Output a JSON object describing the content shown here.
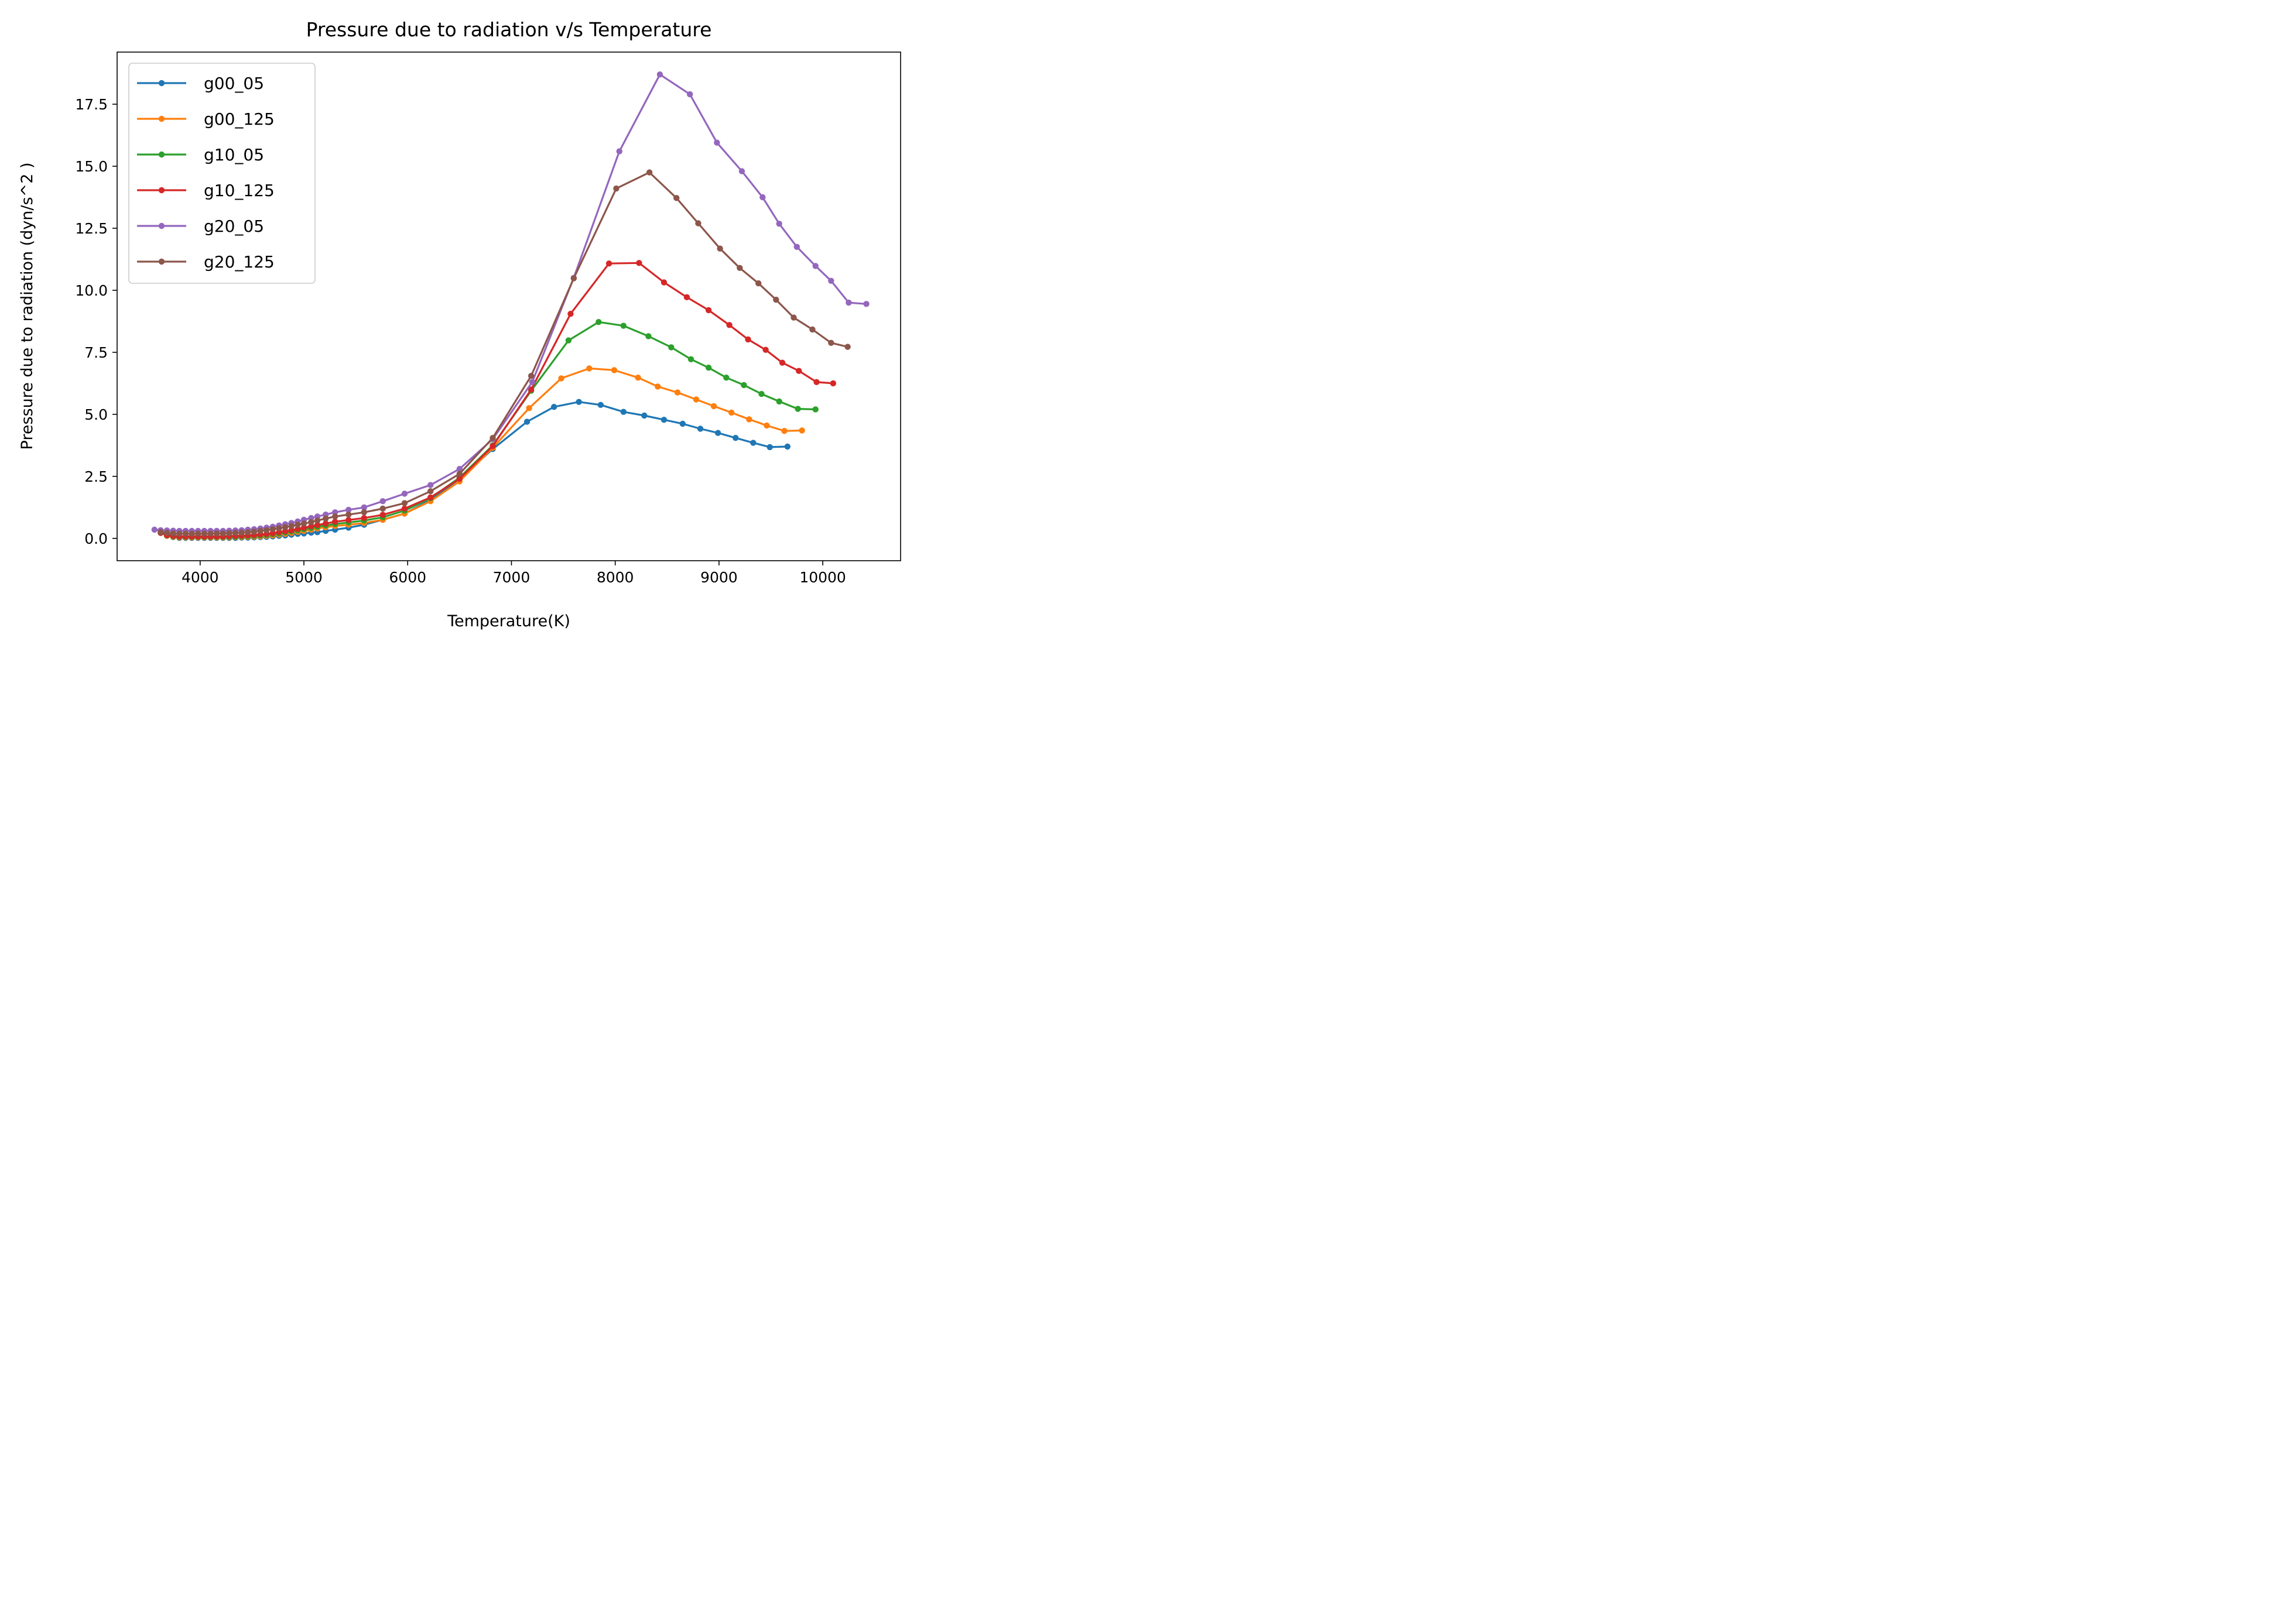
{
  "chart_data": {
    "type": "line",
    "title": "Pressure due to radiation v/s Temperature",
    "xlabel": "Temperature(K)",
    "ylabel": "Pressure due to radiation (dyn/s^2 )",
    "xlim": [
      3200,
      10750
    ],
    "ylim": [
      -0.9,
      19.6
    ],
    "xticks": [
      4000,
      5000,
      6000,
      7000,
      8000,
      9000,
      10000
    ],
    "yticks": [
      0.0,
      2.5,
      5.0,
      7.5,
      10.0,
      12.5,
      15.0,
      17.5
    ],
    "ytick_labels": [
      "0.0",
      "2.5",
      "5.0",
      "7.5",
      "10.0",
      "12.5",
      "15.0",
      "17.5"
    ],
    "grid": false,
    "legend_position": "top-left",
    "series": [
      {
        "name": "g00_05",
        "color": "#1f77b4",
        "x": [
          3620,
          3680,
          3740,
          3800,
          3860,
          3920,
          3980,
          4040,
          4100,
          4160,
          4220,
          4280,
          4340,
          4400,
          4460,
          4520,
          4580,
          4640,
          4700,
          4760,
          4820,
          4880,
          4940,
          5000,
          5070,
          5130,
          5210,
          5300,
          5430,
          5580,
          5760,
          5970,
          6220,
          6500,
          6820,
          7150,
          7410,
          7650,
          7860,
          8080,
          8280,
          8470,
          8650,
          8820,
          8990,
          9160,
          9330,
          9490,
          9660
        ],
        "y": [
          0.25,
          0.1,
          0.05,
          0.02,
          0.02,
          0.02,
          0.02,
          0.02,
          0.02,
          0.02,
          0.02,
          0.02,
          0.02,
          0.03,
          0.03,
          0.04,
          0.05,
          0.06,
          0.08,
          0.1,
          0.12,
          0.15,
          0.18,
          0.2,
          0.23,
          0.25,
          0.3,
          0.35,
          0.43,
          0.55,
          0.75,
          1.0,
          1.55,
          2.4,
          3.6,
          4.7,
          5.3,
          5.5,
          5.38,
          5.1,
          4.95,
          4.78,
          4.62,
          4.42,
          4.25,
          4.05,
          3.85,
          3.68,
          3.7
        ]
      },
      {
        "name": "g00_125",
        "color": "#ff7f0e",
        "x": [
          3620,
          3680,
          3740,
          3800,
          3860,
          3920,
          3980,
          4040,
          4100,
          4160,
          4220,
          4280,
          4340,
          4400,
          4460,
          4520,
          4580,
          4640,
          4700,
          4760,
          4820,
          4880,
          4940,
          5000,
          5070,
          5130,
          5210,
          5300,
          5430,
          5580,
          5760,
          5970,
          6220,
          6500,
          6820,
          7170,
          7480,
          7750,
          7990,
          8220,
          8410,
          8600,
          8780,
          8950,
          9120,
          9290,
          9460,
          9630,
          9800
        ],
        "y": [
          0.25,
          0.1,
          0.06,
          0.04,
          0.04,
          0.04,
          0.04,
          0.04,
          0.04,
          0.04,
          0.04,
          0.04,
          0.05,
          0.05,
          0.06,
          0.07,
          0.08,
          0.1,
          0.12,
          0.15,
          0.18,
          0.22,
          0.26,
          0.3,
          0.35,
          0.4,
          0.45,
          0.5,
          0.55,
          0.62,
          0.75,
          1.0,
          1.5,
          2.3,
          3.65,
          5.25,
          6.45,
          6.85,
          6.78,
          6.48,
          6.12,
          5.88,
          5.6,
          5.33,
          5.07,
          4.8,
          4.55,
          4.33,
          4.35
        ]
      },
      {
        "name": "g10_05",
        "color": "#2ca02c",
        "x": [
          3620,
          3680,
          3740,
          3800,
          3860,
          3920,
          3980,
          4040,
          4100,
          4160,
          4220,
          4280,
          4340,
          4400,
          4460,
          4520,
          4580,
          4640,
          4700,
          4760,
          4820,
          4880,
          4940,
          5000,
          5070,
          5130,
          5210,
          5300,
          5430,
          5580,
          5760,
          5970,
          6220,
          6500,
          6820,
          7190,
          7550,
          7840,
          8080,
          8320,
          8540,
          8730,
          8900,
          9070,
          9240,
          9410,
          9580,
          9760,
          9930
        ],
        "y": [
          0.22,
          0.12,
          0.08,
          0.06,
          0.06,
          0.06,
          0.06,
          0.06,
          0.06,
          0.06,
          0.06,
          0.06,
          0.07,
          0.08,
          0.09,
          0.1,
          0.12,
          0.14,
          0.17,
          0.2,
          0.24,
          0.28,
          0.32,
          0.37,
          0.42,
          0.47,
          0.52,
          0.58,
          0.64,
          0.72,
          0.85,
          1.12,
          1.62,
          2.45,
          3.75,
          5.95,
          7.98,
          8.72,
          8.57,
          8.15,
          7.7,
          7.22,
          6.88,
          6.48,
          6.18,
          5.82,
          5.52,
          5.22,
          5.2
        ]
      },
      {
        "name": "g10_125",
        "color": "#d62728",
        "x": [
          3620,
          3680,
          3740,
          3800,
          3860,
          3920,
          3980,
          4040,
          4100,
          4160,
          4220,
          4280,
          4340,
          4400,
          4460,
          4520,
          4580,
          4640,
          4700,
          4760,
          4820,
          4880,
          4940,
          5000,
          5070,
          5130,
          5210,
          5300,
          5430,
          5580,
          5760,
          5970,
          6220,
          6500,
          6820,
          7190,
          7570,
          7940,
          8230,
          8470,
          8690,
          8900,
          9100,
          9280,
          9450,
          9610,
          9770,
          9940,
          10100
        ],
        "y": [
          0.22,
          0.13,
          0.1,
          0.08,
          0.08,
          0.08,
          0.08,
          0.08,
          0.08,
          0.08,
          0.08,
          0.09,
          0.1,
          0.11,
          0.12,
          0.14,
          0.16,
          0.18,
          0.21,
          0.25,
          0.29,
          0.33,
          0.38,
          0.43,
          0.49,
          0.54,
          0.6,
          0.67,
          0.74,
          0.82,
          0.95,
          1.2,
          1.65,
          2.4,
          3.72,
          6.0,
          9.05,
          11.08,
          11.1,
          10.32,
          9.72,
          9.2,
          8.6,
          8.02,
          7.6,
          7.08,
          6.75,
          6.3,
          6.25
        ]
      },
      {
        "name": "g20_05",
        "color": "#9467bd",
        "x": [
          3560,
          3620,
          3680,
          3740,
          3800,
          3860,
          3920,
          3980,
          4040,
          4100,
          4160,
          4220,
          4280,
          4340,
          4400,
          4460,
          4520,
          4580,
          4640,
          4700,
          4760,
          4820,
          4880,
          4940,
          5000,
          5070,
          5130,
          5210,
          5300,
          5430,
          5580,
          5760,
          5970,
          6220,
          6500,
          6820,
          7200,
          7600,
          8040,
          8430,
          8720,
          8980,
          9220,
          9420,
          9580,
          9750,
          9930,
          10080,
          10250,
          10420
        ],
        "y": [
          0.35,
          0.33,
          0.32,
          0.31,
          0.3,
          0.3,
          0.3,
          0.3,
          0.3,
          0.3,
          0.3,
          0.3,
          0.31,
          0.32,
          0.33,
          0.35,
          0.37,
          0.4,
          0.43,
          0.47,
          0.52,
          0.57,
          0.62,
          0.68,
          0.75,
          0.82,
          0.88,
          0.96,
          1.05,
          1.15,
          1.25,
          1.5,
          1.8,
          2.15,
          2.8,
          4.0,
          6.3,
          10.5,
          15.6,
          18.7,
          17.9,
          15.95,
          14.8,
          13.75,
          12.68,
          11.75,
          10.98,
          10.38,
          9.5,
          9.45
        ]
      },
      {
        "name": "g20_125",
        "color": "#8c564b",
        "x": [
          3620,
          3680,
          3740,
          3800,
          3860,
          3920,
          3980,
          4040,
          4100,
          4160,
          4220,
          4280,
          4340,
          4400,
          4460,
          4520,
          4580,
          4640,
          4700,
          4760,
          4820,
          4880,
          4940,
          5000,
          5070,
          5130,
          5210,
          5300,
          5430,
          5580,
          5760,
          5970,
          6220,
          6500,
          6820,
          7190,
          7600,
          8010,
          8330,
          8590,
          8800,
          9010,
          9200,
          9380,
          9550,
          9720,
          9900,
          10080,
          10240
        ],
        "y": [
          0.25,
          0.22,
          0.2,
          0.19,
          0.19,
          0.19,
          0.19,
          0.19,
          0.19,
          0.2,
          0.2,
          0.21,
          0.22,
          0.23,
          0.25,
          0.27,
          0.3,
          0.33,
          0.37,
          0.41,
          0.45,
          0.5,
          0.55,
          0.6,
          0.66,
          0.72,
          0.8,
          0.88,
          0.96,
          1.05,
          1.2,
          1.42,
          1.9,
          2.6,
          4.05,
          6.55,
          10.48,
          14.1,
          14.75,
          13.72,
          12.7,
          11.68,
          10.9,
          10.28,
          9.62,
          8.9,
          8.42,
          7.88,
          7.72
        ]
      }
    ]
  }
}
